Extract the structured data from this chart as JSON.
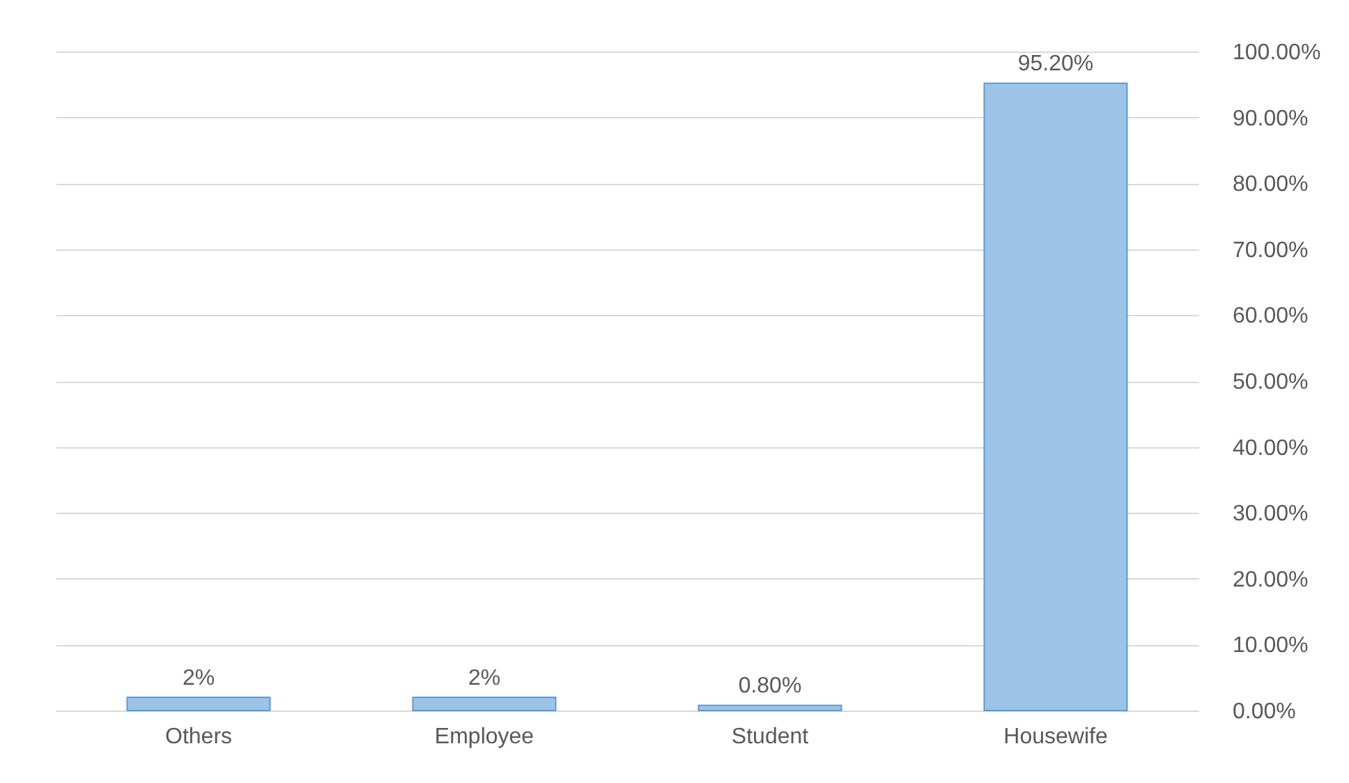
{
  "chart_data": {
    "type": "bar",
    "categories": [
      "Others",
      "Employee",
      "Student",
      "Housewife"
    ],
    "values": [
      2,
      2,
      0.8,
      95.2
    ],
    "value_labels": [
      "2%",
      "2%",
      "0.80%",
      "95.20%"
    ],
    "color": "#9dc3e6",
    "ylim": [
      0,
      100
    ],
    "yticks": [
      {
        "value": 0,
        "label": "0.00%"
      },
      {
        "value": 10,
        "label": "10.00%"
      },
      {
        "value": 20,
        "label": "20.00%"
      },
      {
        "value": 30,
        "label": "30.00%"
      },
      {
        "value": 40,
        "label": "40.00%"
      },
      {
        "value": 50,
        "label": "50.00%"
      },
      {
        "value": 60,
        "label": "60.00%"
      },
      {
        "value": 70,
        "label": "70.00%"
      },
      {
        "value": 80,
        "label": "80.00%"
      },
      {
        "value": 90,
        "label": "90.00%"
      },
      {
        "value": 100,
        "label": "100.00%"
      }
    ],
    "grid": "y"
  }
}
